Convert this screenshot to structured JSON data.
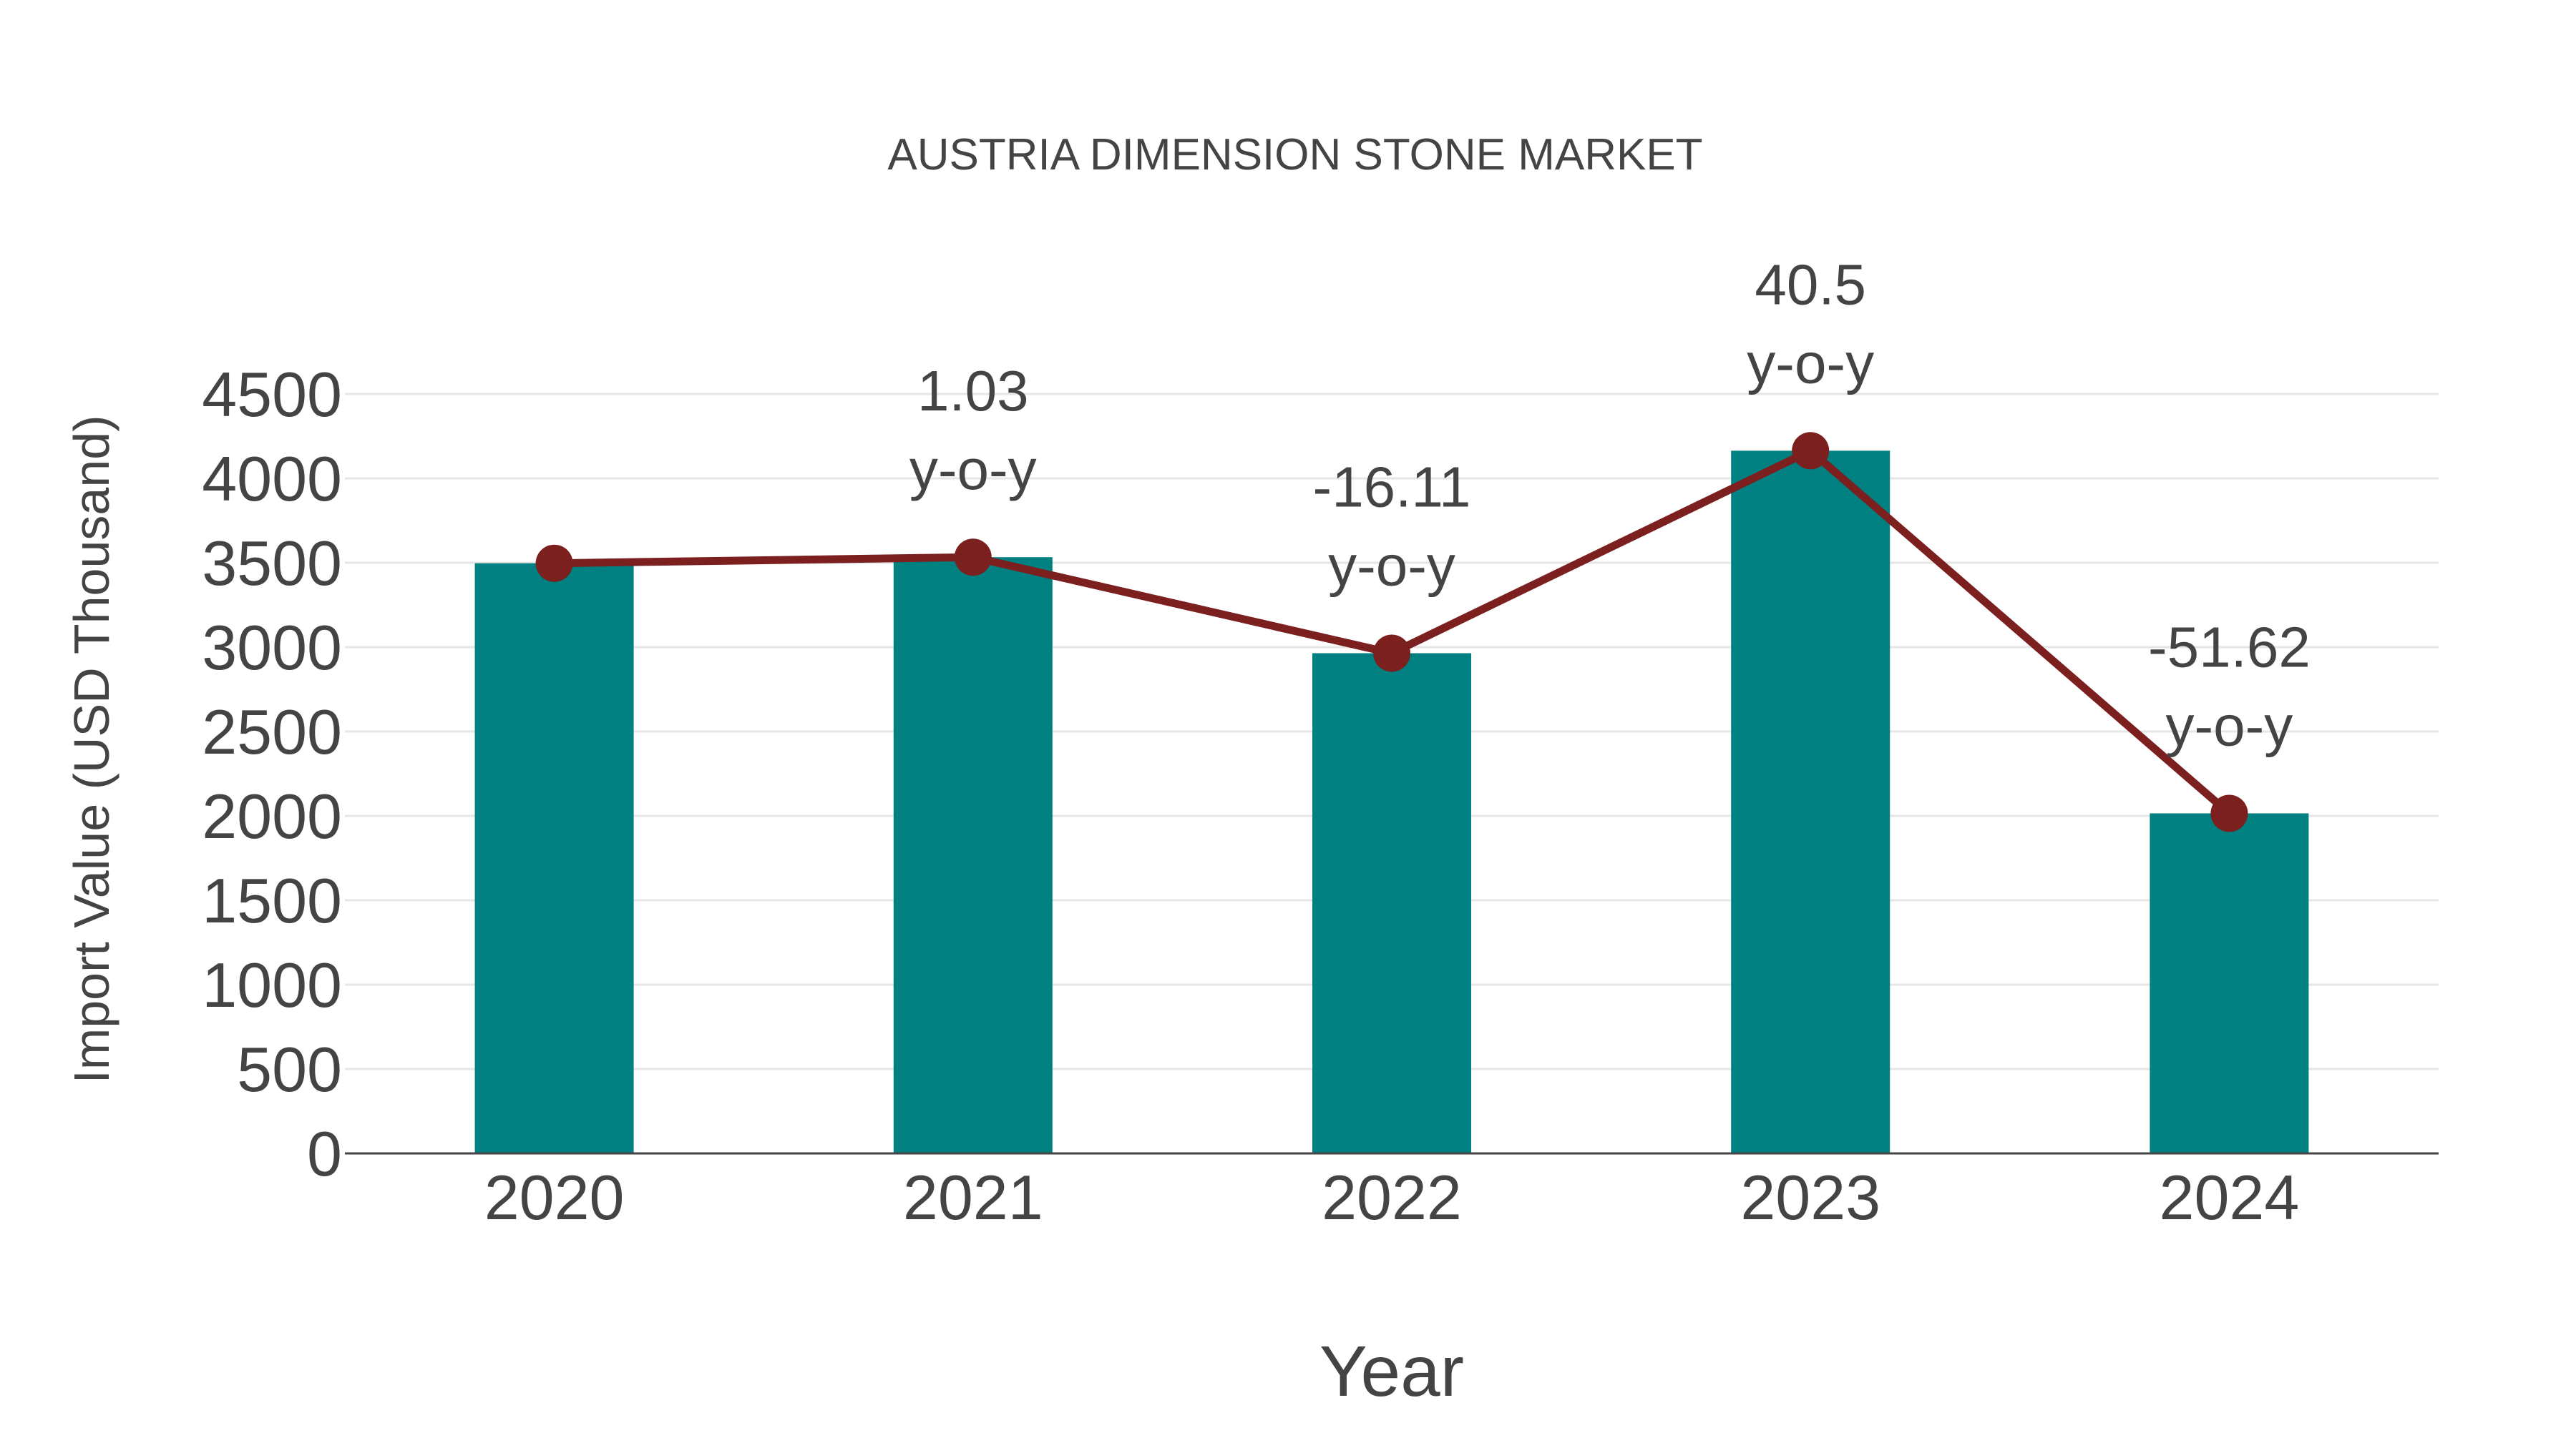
{
  "chart_data": {
    "type": "bar",
    "title": "AUSTRIA DIMENSION STONE MARKET",
    "xlabel": "Year",
    "ylabel": "Import Value (USD Thousand)",
    "categories": [
      "2020",
      "2021",
      "2022",
      "2023",
      "2024"
    ],
    "series": [
      {
        "name": "Import Value",
        "type": "bar",
        "color": "#008080",
        "values": [
          3497,
          3533,
          2964,
          4164,
          2015
        ]
      },
      {
        "name": "Trend",
        "type": "line",
        "color": "#7b1f1f",
        "values": [
          3497,
          3533,
          2964,
          4164,
          2015
        ]
      }
    ],
    "annotations": [
      {
        "x": "2021",
        "value": "1.03",
        "suffix": "y-o-y"
      },
      {
        "x": "2022",
        "value": "-16.11",
        "suffix": "y-o-y"
      },
      {
        "x": "2023",
        "value": "40.5",
        "suffix": "y-o-y"
      },
      {
        "x": "2024",
        "value": "-51.62",
        "suffix": "y-o-y"
      }
    ],
    "yticks": [
      0,
      500,
      1000,
      1500,
      2000,
      2500,
      3000,
      3500,
      4000,
      4500
    ],
    "ylim": [
      0,
      4500
    ],
    "grid": true,
    "legend": "none"
  }
}
